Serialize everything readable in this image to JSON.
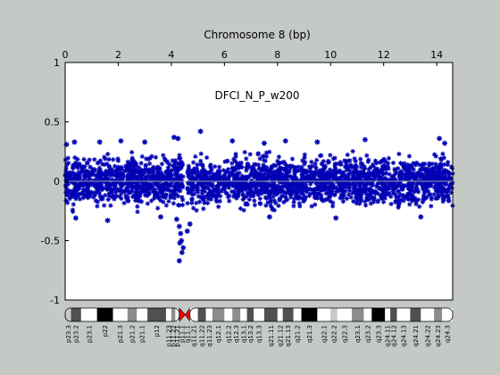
{
  "chart_data": {
    "type": "scatter",
    "title": "Chromosome 8 (bp)",
    "annotation": "DFCI_N_P_w200",
    "xlim": [
      0,
      14.6
    ],
    "ylim": [
      -1,
      1
    ],
    "x_axis_position": "top",
    "x_ticks": [
      "0",
      "2",
      "4",
      "6",
      "8",
      "10",
      "12",
      "14"
    ],
    "y_ticks": [
      "1",
      "0.5",
      "0",
      "-0.5",
      "-1"
    ],
    "grid": false,
    "zero_line": true,
    "colors": {
      "points": "#0000b4",
      "zero_line": "#a0a0a0",
      "figure_background": "#c5c9c5",
      "plot_background": "#ffffff",
      "centromere": "#ff0000"
    },
    "series": [
      {
        "marker": "asterisk",
        "dense_band": {
          "x_start": 0,
          "x_end": 14.6,
          "gap_x": [
            4.45,
            4.6
          ],
          "typical_y_range": [
            -0.27,
            0.27
          ]
        },
        "outliers": [
          {
            "x": 0.05,
            "y": 0.31
          },
          {
            "x": 0.35,
            "y": 0.33
          },
          {
            "x": 1.3,
            "y": 0.33
          },
          {
            "x": 2.1,
            "y": 0.34
          },
          {
            "x": 3.0,
            "y": 0.33
          },
          {
            "x": 4.1,
            "y": 0.37
          },
          {
            "x": 4.25,
            "y": 0.36
          },
          {
            "x": 5.1,
            "y": 0.42
          },
          {
            "x": 6.3,
            "y": 0.34
          },
          {
            "x": 7.5,
            "y": 0.32
          },
          {
            "x": 8.3,
            "y": 0.34
          },
          {
            "x": 9.5,
            "y": 0.33
          },
          {
            "x": 11.3,
            "y": 0.35
          },
          {
            "x": 14.1,
            "y": 0.36
          },
          {
            "x": 14.3,
            "y": 0.32
          },
          {
            "x": 0.4,
            "y": -0.31
          },
          {
            "x": 1.6,
            "y": -0.33
          },
          {
            "x": 3.6,
            "y": -0.3
          },
          {
            "x": 4.2,
            "y": -0.32
          },
          {
            "x": 4.3,
            "y": -0.38
          },
          {
            "x": 4.35,
            "y": -0.44
          },
          {
            "x": 4.38,
            "y": -0.5
          },
          {
            "x": 4.32,
            "y": -0.52
          },
          {
            "x": 4.45,
            "y": -0.56
          },
          {
            "x": 4.4,
            "y": -0.6
          },
          {
            "x": 4.3,
            "y": -0.67
          },
          {
            "x": 4.6,
            "y": -0.42
          },
          {
            "x": 4.7,
            "y": -0.36
          },
          {
            "x": 7.7,
            "y": -0.3
          },
          {
            "x": 10.2,
            "y": -0.31
          },
          {
            "x": 13.4,
            "y": -0.3
          }
        ]
      }
    ],
    "ideogram": {
      "bands": [
        {
          "label": "p23.3",
          "start": 0,
          "end": 0.22,
          "stain": "light"
        },
        {
          "label": "p23.2",
          "start": 0.22,
          "end": 0.6,
          "stain": "dark"
        },
        {
          "label": "p23.1",
          "start": 0.6,
          "end": 1.2,
          "stain": "white"
        },
        {
          "label": "p22",
          "start": 1.2,
          "end": 1.8,
          "stain": "black"
        },
        {
          "label": "p21.3",
          "start": 1.8,
          "end": 2.35,
          "stain": "white"
        },
        {
          "label": "p21.2",
          "start": 2.35,
          "end": 2.7,
          "stain": "mid"
        },
        {
          "label": "p21.1",
          "start": 2.7,
          "end": 3.1,
          "stain": "white"
        },
        {
          "label": "p12",
          "start": 3.1,
          "end": 3.8,
          "stain": "dark"
        },
        {
          "label": "p11.23",
          "start": 3.8,
          "end": 4.0,
          "stain": "white"
        },
        {
          "label": "p11.22",
          "start": 4.0,
          "end": 4.15,
          "stain": "mid"
        },
        {
          "label": "p11.21",
          "start": 4.15,
          "end": 4.3,
          "stain": "white"
        },
        {
          "label": "p11.1",
          "start": 4.3,
          "end": 4.52,
          "stain": "centromere"
        },
        {
          "label": "q11.1",
          "start": 4.52,
          "end": 4.7,
          "stain": "centromere"
        },
        {
          "label": "q11.21",
          "start": 4.7,
          "end": 5.0,
          "stain": "white"
        },
        {
          "label": "q11.22",
          "start": 5.0,
          "end": 5.3,
          "stain": "dark"
        },
        {
          "label": "q11.23",
          "start": 5.3,
          "end": 5.55,
          "stain": "white"
        },
        {
          "label": "q12.1",
          "start": 5.55,
          "end": 6.0,
          "stain": "mid"
        },
        {
          "label": "q12.2",
          "start": 6.0,
          "end": 6.3,
          "stain": "white"
        },
        {
          "label": "q12.3",
          "start": 6.3,
          "end": 6.6,
          "stain": "mid"
        },
        {
          "label": "q13.1",
          "start": 6.6,
          "end": 6.85,
          "stain": "white"
        },
        {
          "label": "q13.2",
          "start": 6.85,
          "end": 7.1,
          "stain": "dark"
        },
        {
          "label": "q13.3",
          "start": 7.1,
          "end": 7.5,
          "stain": "white"
        },
        {
          "label": "q21.11",
          "start": 7.5,
          "end": 8.0,
          "stain": "dark"
        },
        {
          "label": "q21.12",
          "start": 8.0,
          "end": 8.2,
          "stain": "white"
        },
        {
          "label": "q21.13",
          "start": 8.2,
          "end": 8.6,
          "stain": "dark"
        },
        {
          "label": "q21.2",
          "start": 8.6,
          "end": 8.9,
          "stain": "white"
        },
        {
          "label": "q21.3",
          "start": 8.9,
          "end": 9.5,
          "stain": "black"
        },
        {
          "label": "q22.1",
          "start": 9.5,
          "end": 10.0,
          "stain": "white"
        },
        {
          "label": "q22.2",
          "start": 10.0,
          "end": 10.25,
          "stain": "light"
        },
        {
          "label": "q22.3",
          "start": 10.25,
          "end": 10.8,
          "stain": "white"
        },
        {
          "label": "q23.1",
          "start": 10.8,
          "end": 11.25,
          "stain": "mid"
        },
        {
          "label": "q23.2",
          "start": 11.25,
          "end": 11.55,
          "stain": "white"
        },
        {
          "label": "q23.3",
          "start": 11.55,
          "end": 12.05,
          "stain": "black"
        },
        {
          "label": "q24.11",
          "start": 12.05,
          "end": 12.25,
          "stain": "white"
        },
        {
          "label": "q24.12",
          "start": 12.25,
          "end": 12.5,
          "stain": "dark"
        },
        {
          "label": "q24.13",
          "start": 12.5,
          "end": 13.0,
          "stain": "white"
        },
        {
          "label": "q24.21",
          "start": 13.0,
          "end": 13.4,
          "stain": "dark"
        },
        {
          "label": "q24.22",
          "start": 13.4,
          "end": 13.9,
          "stain": "white"
        },
        {
          "label": "q24.23",
          "start": 13.9,
          "end": 14.2,
          "stain": "mid"
        },
        {
          "label": "q24.3",
          "start": 14.2,
          "end": 14.6,
          "stain": "white"
        }
      ]
    }
  }
}
